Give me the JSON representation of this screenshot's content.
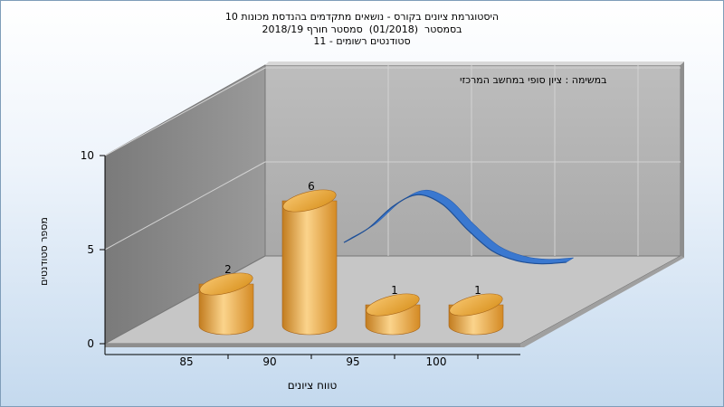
{
  "chart_data": {
    "type": "bar",
    "title_lines": [
      "היסטוגרמת ציונים בקורס - נושאים מתקדמים בהנדסת מכונות 10",
      "בסמסטר  (01/2018)  סמסטר חורף 2018/19",
      "סטודנטים רשומים - 11"
    ],
    "annotation": "במשימה : ציון סופי במחשב המרכזי",
    "xlabel": "טווח ציונים",
    "ylabel": "מספר סטודנטים",
    "categories": [
      "85",
      "90",
      "95",
      "100"
    ],
    "values": [
      2,
      6,
      1,
      1
    ],
    "ylim": [
      0,
      10
    ],
    "yticks": [
      0,
      5,
      10
    ],
    "grid": true,
    "curve": {
      "color": "#3a78d0",
      "x": [
        90,
        91.5,
        93,
        94.5,
        96,
        97.5,
        99,
        100.5,
        102,
        103.5
      ],
      "y": [
        2.6,
        4.5,
        7.4,
        8.9,
        7.6,
        4.3,
        1.5,
        0.2,
        -0.2,
        0.0
      ]
    },
    "colors": {
      "bar_light": "#fbd48c",
      "bar_mid": "#eba94a",
      "bar_dark": "#c27c1f",
      "floor": "#c4c4c4",
      "back_wall": "#b4b4b4",
      "side_wall": "#8a8a8a"
    }
  }
}
